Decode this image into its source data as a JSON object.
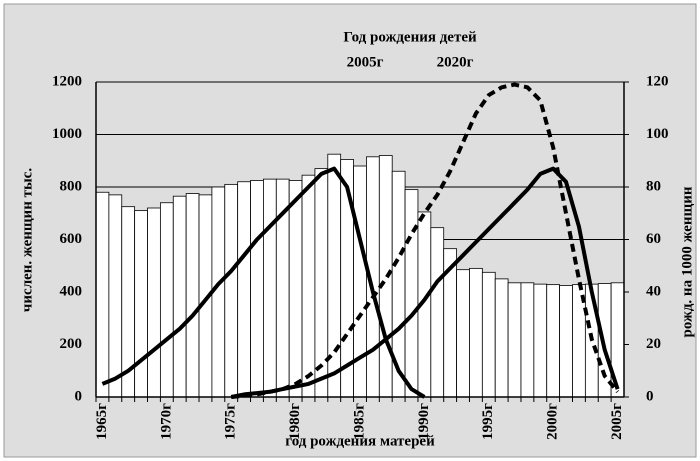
{
  "chart_data": {
    "type": "bar-line",
    "title": "Год рождения детей",
    "xlabel": "год рождения  матерей",
    "ylabel": "числен. женщин тыс.",
    "y2label": "рожд. на 1000 женщин",
    "categories": [
      "1965г",
      null,
      null,
      null,
      null,
      "1970г",
      null,
      null,
      null,
      null,
      "1975г",
      null,
      null,
      null,
      null,
      "1980г",
      null,
      null,
      null,
      null,
      "1985г",
      null,
      null,
      null,
      null,
      "1990г",
      null,
      null,
      null,
      null,
      "1995г",
      null,
      null,
      null,
      null,
      "2000г",
      null,
      null,
      null,
      null,
      "2005г"
    ],
    "series": [
      {
        "kind": "bar",
        "color": "#ffffff",
        "values": [
          780,
          770,
          725,
          710,
          720,
          740,
          765,
          775,
          770,
          800,
          810,
          820,
          825,
          830,
          830,
          825,
          845,
          870,
          925,
          905,
          880,
          915,
          920,
          860,
          790,
          705,
          645,
          565,
          485,
          490,
          475,
          450,
          435,
          435,
          430,
          428,
          425,
          428,
          430,
          432,
          435
        ]
      },
      {
        "name": "2005г",
        "kind": "line",
        "axis": "y2",
        "color": "#000000",
        "dashed": false,
        "values": [
          5,
          7,
          10,
          14,
          18,
          22,
          26,
          31,
          37,
          43,
          48,
          54,
          60,
          65,
          70,
          75,
          80,
          85,
          87,
          80,
          60,
          40,
          22,
          10,
          3,
          0,
          null,
          null,
          null,
          null,
          null,
          null,
          null,
          null,
          null,
          null,
          null,
          null,
          null,
          null,
          null
        ]
      },
      {
        "name": "2020г",
        "kind": "line",
        "axis": "y2",
        "color": "#000000",
        "dashed": true,
        "values": [
          null,
          null,
          null,
          null,
          null,
          null,
          null,
          null,
          null,
          null,
          0,
          0.5,
          1,
          2,
          3,
          5,
          8,
          12,
          17,
          24,
          31,
          38,
          45,
          53,
          62,
          70,
          77,
          86,
          97,
          108,
          115,
          118,
          119,
          118,
          113,
          95,
          70,
          45,
          22,
          8,
          2
        ]
      },
      {
        "kind": "line",
        "axis": "y2",
        "color": "#000000",
        "dashed": false,
        "values": [
          null,
          null,
          null,
          null,
          null,
          null,
          null,
          null,
          null,
          null,
          0,
          1,
          1.5,
          2,
          3,
          4,
          5,
          7,
          9,
          12,
          15,
          18,
          22,
          26,
          31,
          37,
          44,
          49,
          54,
          59,
          64,
          69,
          74,
          79,
          85,
          87,
          82,
          65,
          40,
          18,
          3
        ]
      }
    ],
    "ylim": [
      0,
      1200
    ],
    "yticks": [
      0,
      200,
      400,
      600,
      800,
      1000,
      1200
    ],
    "y2lim": [
      0,
      120
    ],
    "y2ticks": [
      0,
      20,
      40,
      60,
      80,
      100,
      120
    ],
    "grid": true
  }
}
